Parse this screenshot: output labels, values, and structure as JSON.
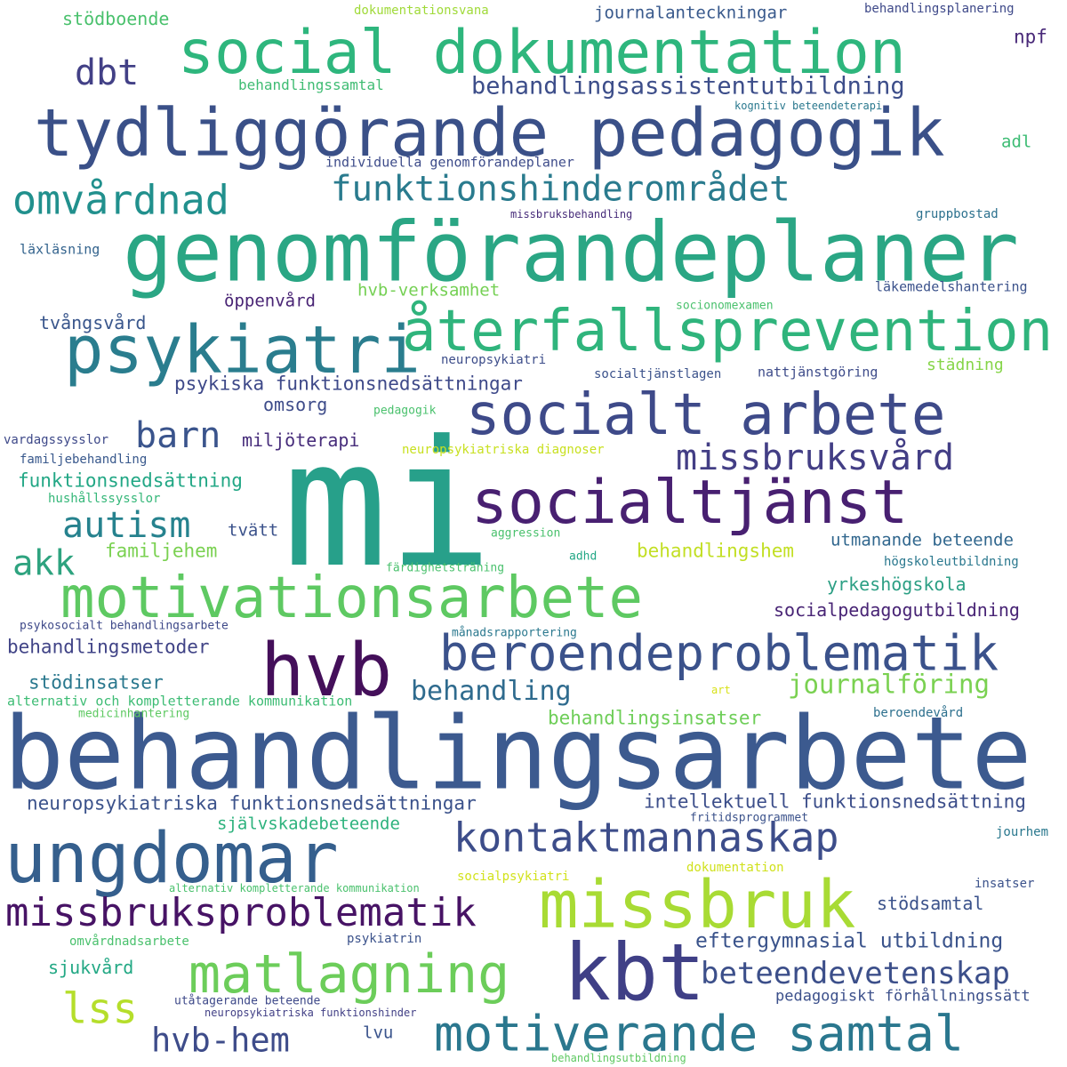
{
  "words": [
    {
      "text": "mi",
      "color": "#27a08a"
    },
    {
      "text": "behandlingsarbete",
      "color": "#3c5a8f"
    },
    {
      "text": "genomförandeplaner",
      "color": "#2aa684"
    },
    {
      "text": "tydliggörande pedagogik",
      "color": "#3a5088"
    },
    {
      "text": "social dokumentation",
      "color": "#2eb67d"
    },
    {
      "text": "psykiatri",
      "color": "#2a7d8e"
    },
    {
      "text": "återfallsprevention",
      "color": "#2fb47c"
    },
    {
      "text": "socialt arbete",
      "color": "#3e4a89"
    },
    {
      "text": "socialtjänst",
      "color": "#482071"
    },
    {
      "text": "motivationsarbete",
      "color": "#5ec962"
    },
    {
      "text": "hvb",
      "color": "#440f5a"
    },
    {
      "text": "beroendeproblematik",
      "color": "#3b528b"
    },
    {
      "text": "ungdomar",
      "color": "#355f8d"
    },
    {
      "text": "kontaktmannaskap",
      "color": "#3d4d8a"
    },
    {
      "text": "missbruk",
      "color": "#a8db34"
    },
    {
      "text": "kbt",
      "color": "#3f3f86"
    },
    {
      "text": "missbruksproblematik",
      "color": "#471365"
    },
    {
      "text": "matlagning",
      "color": "#6ccd5a"
    },
    {
      "text": "motiverande samtal",
      "color": "#2a778e"
    },
    {
      "text": "lss",
      "color": "#b5de2b"
    },
    {
      "text": "hvb-hem",
      "color": "#3e4c8a"
    },
    {
      "text": "omvårdnad",
      "color": "#21908d"
    },
    {
      "text": "funktionshinderområdet",
      "color": "#2a7b8e"
    },
    {
      "text": "dbt",
      "color": "#424086"
    },
    {
      "text": "behandlingsassistentutbildning",
      "color": "#3d4e8a"
    },
    {
      "text": "barn",
      "color": "#3a548c"
    },
    {
      "text": "missbruksvård",
      "color": "#433e85"
    },
    {
      "text": "autism",
      "color": "#26828e"
    },
    {
      "text": "akk",
      "color": "#2ea37f"
    },
    {
      "text": "beteendevetenskap",
      "color": "#3c4f8a"
    },
    {
      "text": "journalföring",
      "color": "#7ad151"
    },
    {
      "text": "behandling",
      "color": "#2f6b8e"
    },
    {
      "text": "psykiska funktionsnedsättningar",
      "color": "#3e4989"
    },
    {
      "text": "neuropsykiatriska funktionsnedsättningar",
      "color": "#3b528b"
    },
    {
      "text": "intellektuell funktionsnedsättning",
      "color": "#3c4e8a"
    },
    {
      "text": "eftergymnasial utbildning",
      "color": "#3a538b"
    },
    {
      "text": "stödsamtal",
      "color": "#3b528b"
    },
    {
      "text": "pedagogiskt förhållningssätt",
      "color": "#3c508b"
    },
    {
      "text": "socialpedagogutbildning",
      "color": "#482475"
    },
    {
      "text": "yrkeshögskola",
      "color": "#2c9f84"
    },
    {
      "text": "utmanande beteende",
      "color": "#31678e"
    },
    {
      "text": "behandlingshem",
      "color": "#c2df23"
    },
    {
      "text": "familjehem",
      "color": "#7ad151"
    },
    {
      "text": "tvätt",
      "color": "#3b528b"
    },
    {
      "text": "funktionsnedsättning",
      "color": "#22a785"
    },
    {
      "text": "miljöterapi",
      "color": "#472d7b"
    },
    {
      "text": "omsorg",
      "color": "#3e4c8a"
    },
    {
      "text": "tvångsvård",
      "color": "#39568c"
    },
    {
      "text": "öppenvård",
      "color": "#482374"
    },
    {
      "text": "hvb-verksamhet",
      "color": "#75d054"
    },
    {
      "text": "behandlingsmetoder",
      "color": "#414487"
    },
    {
      "text": "stödinsatser",
      "color": "#2a788e"
    },
    {
      "text": "behandlingsinsatser",
      "color": "#6ece58"
    },
    {
      "text": "självskadebeteende",
      "color": "#2db27d"
    },
    {
      "text": "sjukvård",
      "color": "#22a884"
    },
    {
      "text": "lvu",
      "color": "#3a548c"
    },
    {
      "text": "journalanteckningar",
      "color": "#38598c"
    },
    {
      "text": "behandlingssamtal",
      "color": "#3fbc73"
    },
    {
      "text": "stödboende",
      "color": "#4ac16d"
    },
    {
      "text": "npf",
      "color": "#482878"
    },
    {
      "text": "adl",
      "color": "#3dbc74"
    },
    {
      "text": "städning",
      "color": "#86d549"
    },
    {
      "text": "nattjänstgöring",
      "color": "#3e4c8a"
    },
    {
      "text": "socialtjänstlagen",
      "color": "#3b528b"
    },
    {
      "text": "neuropsykiatri",
      "color": "#3d4d8a"
    },
    {
      "text": "socionomexamen",
      "color": "#4ac16d"
    },
    {
      "text": "läkemedelshantering",
      "color": "#3b528b"
    },
    {
      "text": "gruppbostad",
      "color": "#2c718e"
    },
    {
      "text": "missbruksbehandling",
      "color": "#472c7a"
    },
    {
      "text": "individuella genomförandeplaner",
      "color": "#3e4c8a"
    },
    {
      "text": "kognitiv beteendeterapi",
      "color": "#2a788e"
    },
    {
      "text": "behandlingsplanering",
      "color": "#3e4989"
    },
    {
      "text": "dokumentationsvana",
      "color": "#a0da39"
    },
    {
      "text": "läxläsning",
      "color": "#33638d"
    },
    {
      "text": "vardagssysslor",
      "color": "#3e4989"
    },
    {
      "text": "familjebehandling",
      "color": "#38588c"
    },
    {
      "text": "hushållssysslor",
      "color": "#35b779"
    },
    {
      "text": "pedagogik",
      "color": "#4ac16d"
    },
    {
      "text": "neuropsykiatriska diagnoser",
      "color": "#c8e020"
    },
    {
      "text": "aggression",
      "color": "#4ac16d"
    },
    {
      "text": "adhd",
      "color": "#22a785"
    },
    {
      "text": "färdighetsträning",
      "color": "#4ac16d"
    },
    {
      "text": "högskoleutbildning",
      "color": "#2a788e"
    },
    {
      "text": "psykosocialt behandlingsarbete",
      "color": "#3e4989"
    },
    {
      "text": "månadsrapportering",
      "color": "#2a788e"
    },
    {
      "text": "alternativ och kompletterande kommunikation",
      "color": "#3dbc74"
    },
    {
      "text": "medicinhantering",
      "color": "#5ec962"
    },
    {
      "text": "art",
      "color": "#d8e219"
    },
    {
      "text": "beroendevård",
      "color": "#2d708e"
    },
    {
      "text": "fritidsprogrammet",
      "color": "#3b528b"
    },
    {
      "text": "jourhem",
      "color": "#2a788e"
    },
    {
      "text": "dokumentation",
      "color": "#d0e11c"
    },
    {
      "text": "insatser",
      "color": "#3b528b"
    },
    {
      "text": "socialpsykiatri",
      "color": "#d2e21b"
    },
    {
      "text": "alternativ kompletterande kommunikation",
      "color": "#4ac16d"
    },
    {
      "text": "omvårdnadsarbete",
      "color": "#4ac16d"
    },
    {
      "text": "psykiatrin",
      "color": "#3b528b"
    },
    {
      "text": "utåtagerande beteende",
      "color": "#3e4989"
    },
    {
      "text": "neuropsykiatriska funktionshinder",
      "color": "#424086"
    },
    {
      "text": "behandlingsutbildning",
      "color": "#5ec962"
    }
  ]
}
